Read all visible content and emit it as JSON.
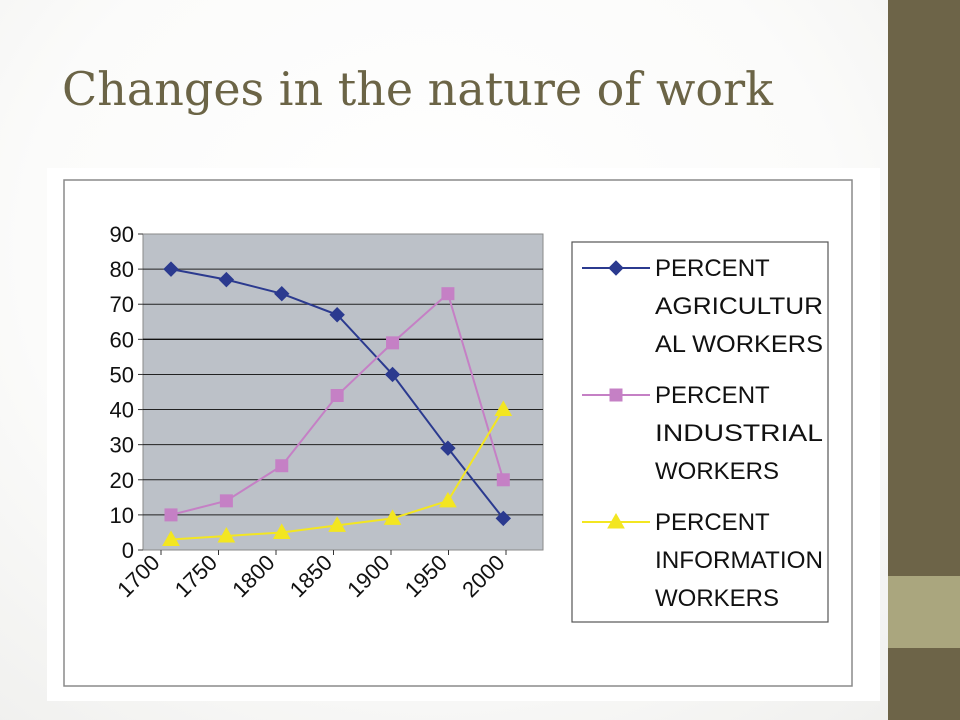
{
  "slide": {
    "title": "Changes in the nature of work"
  },
  "colors": {
    "side_bar": "#6d6448",
    "side_accent": "#aaa67e",
    "title": "#6b6446",
    "plot_area": "#bcc1c8"
  },
  "chart_data": {
    "type": "line",
    "title": "",
    "xlabel": "",
    "ylabel": "",
    "categories": [
      "1700",
      "1750",
      "1800",
      "1850",
      "1900",
      "1950",
      "2000"
    ],
    "y_ticks": [
      "0",
      "10",
      "20",
      "30",
      "40",
      "50",
      "60",
      "70",
      "80",
      "90"
    ],
    "ylim": [
      0,
      90
    ],
    "grid": true,
    "legend_position": "right",
    "series": [
      {
        "name": "PERCENT AGRICULTURAL WORKERS",
        "legend_lines": [
          "PERCENT",
          "AGRICULTUR",
          "AL WORKERS"
        ],
        "color": "#2b3a8f",
        "marker": "diamond",
        "values": [
          80,
          77,
          73,
          67,
          50,
          29,
          9
        ]
      },
      {
        "name": "PERCENT INDUSTRIAL WORKERS",
        "legend_lines": [
          "PERCENT",
          "INDUSTRIAL",
          "WORKERS"
        ],
        "color": "#c580c5",
        "marker": "square",
        "values": [
          10,
          14,
          24,
          44,
          59,
          73,
          20
        ]
      },
      {
        "name": "PERCENT INFORMATION WORKERS",
        "legend_lines": [
          "PERCENT",
          "INFORMATION",
          "WORKERS"
        ],
        "color": "#f3e621",
        "marker": "triangle",
        "values": [
          3,
          4,
          5,
          7,
          9,
          14,
          40
        ]
      }
    ]
  }
}
